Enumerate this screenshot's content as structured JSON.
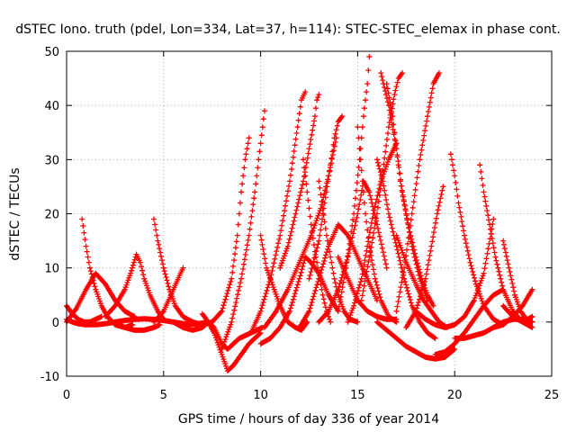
{
  "chart_data": {
    "type": "scatter",
    "title": "dSTEC Iono. truth (pdel, Lon=334, Lat=37, h=114): STEC-STEC_elemax in phase cont.",
    "xlabel": "GPS time / hours of day 336 of year 2014",
    "ylabel": "dSTEC  / TECUs",
    "xlim": [
      0,
      25
    ],
    "ylim": [
      -10,
      50
    ],
    "xticks": [
      0,
      5,
      10,
      15,
      20,
      25
    ],
    "yticks": [
      -10,
      0,
      10,
      20,
      30,
      40,
      50
    ],
    "grid": true,
    "marker": "plus",
    "color": "#ff0000",
    "series": [
      {
        "x": [
          0.0,
          0.3,
          0.6,
          1.0,
          1.5,
          2.0,
          2.5,
          3.0,
          3.5,
          4.0,
          4.5,
          5.0,
          5.5,
          6.0,
          6.5,
          7.0,
          7.3
        ],
        "y": [
          0.5,
          0.0,
          -0.3,
          -0.5,
          -0.5,
          -0.3,
          0.0,
          0.3,
          0.5,
          0.6,
          0.5,
          0.3,
          0.0,
          -0.3,
          -0.4,
          -0.2,
          0.0
        ]
      },
      {
        "x": [
          0.8,
          1.0,
          1.2,
          1.5,
          1.8,
          2.1,
          2.5,
          3.0,
          3.4
        ],
        "y": [
          19.0,
          14.0,
          10.0,
          6.0,
          3.0,
          1.0,
          -0.5,
          -1.0,
          -0.5
        ]
      },
      {
        "x": [
          0.0,
          0.3,
          0.6,
          0.9,
          1.2,
          1.5,
          1.8
        ],
        "y": [
          3.0,
          1.5,
          0.5,
          0.0,
          0.0,
          0.5,
          1.0
        ]
      },
      {
        "x": [
          0.0,
          0.5,
          1.0,
          1.5,
          2.0,
          2.5,
          3.0,
          3.5
        ],
        "y": [
          0.0,
          2.5,
          6.0,
          9.0,
          7.0,
          4.0,
          2.0,
          1.0
        ]
      },
      {
        "x": [
          2.0,
          2.5,
          3.0,
          3.3,
          3.6,
          3.8,
          4.0,
          4.3,
          4.7,
          5.0
        ],
        "y": [
          1.0,
          3.0,
          6.0,
          9.0,
          12.5,
          11.0,
          8.0,
          5.0,
          2.0,
          0.5
        ]
      },
      {
        "x": [
          2.5,
          3.0,
          3.5,
          4.0,
          4.5,
          4.8
        ],
        "y": [
          0.0,
          -1.0,
          -1.5,
          -1.5,
          -1.0,
          -0.5
        ]
      },
      {
        "x": [
          4.5,
          4.7,
          5.0,
          5.3,
          5.6,
          6.0,
          6.5,
          7.0,
          7.5
        ],
        "y": [
          19.0,
          15.0,
          10.0,
          6.0,
          3.0,
          1.0,
          0.0,
          -0.5,
          0.0
        ]
      },
      {
        "x": [
          4.5,
          5.0,
          5.5,
          6.0
        ],
        "y": [
          0.0,
          2.0,
          6.0,
          10.0
        ]
      },
      {
        "x": [
          5.5,
          6.0,
          6.5,
          7.0,
          7.3,
          7.6,
          8.0,
          8.3,
          8.6,
          9.0,
          9.4,
          10.0
        ],
        "y": [
          0.0,
          -1.0,
          -1.5,
          -1.0,
          0.0,
          -2.0,
          -6.0,
          -9.0,
          -8.0,
          -6.0,
          -4.0,
          -2.0
        ]
      },
      {
        "x": [
          7.0,
          7.3,
          7.6,
          8.0,
          8.3,
          8.6,
          8.9,
          9.2,
          9.5,
          9.8,
          10.1
        ],
        "y": [
          1.5,
          0.0,
          -1.0,
          -4.0,
          -5.0,
          -4.0,
          -3.0,
          -2.5,
          -2.0,
          -1.5,
          -1.0
        ]
      },
      {
        "x": [
          7.5,
          8.0,
          8.5,
          8.8,
          9.0,
          9.2,
          9.4
        ],
        "y": [
          0.0,
          2.0,
          8.0,
          16.0,
          24.0,
          30.0,
          34.0
        ]
      },
      {
        "x": [
          8.0,
          8.5,
          9.0,
          9.4,
          9.7,
          9.9,
          10.1,
          10.2
        ],
        "y": [
          -5.0,
          0.0,
          8.0,
          16.0,
          24.0,
          30.0,
          36.0,
          39.0
        ]
      },
      {
        "x": [
          9.5,
          10.0,
          10.5,
          11.0,
          11.5,
          11.9,
          12.1,
          12.3
        ],
        "y": [
          -2.0,
          2.0,
          8.0,
          16.0,
          26.0,
          36.0,
          41.0,
          42.5
        ]
      },
      {
        "x": [
          10.0,
          10.3,
          10.7,
          11.0,
          11.4,
          11.8,
          12.1,
          12.4
        ],
        "y": [
          16.0,
          10.0,
          6.0,
          3.0,
          0.0,
          -1.0,
          -1.5,
          0.0
        ]
      },
      {
        "x": [
          10.0,
          10.5,
          11.0,
          11.5,
          12.0,
          12.3,
          12.6,
          13.0,
          13.5,
          14.0
        ],
        "y": [
          -4.0,
          -3.0,
          -1.0,
          2.0,
          8.0,
          12.0,
          11.0,
          9.0,
          5.0,
          2.0
        ]
      },
      {
        "x": [
          10.2,
          10.8,
          11.4,
          12.0,
          12.6,
          13.1,
          13.5,
          13.9
        ],
        "y": [
          -1.0,
          2.0,
          6.0,
          11.0,
          16.0,
          21.0,
          27.0,
          34.0
        ]
      },
      {
        "x": [
          11.0,
          11.4,
          11.8,
          12.2,
          12.5,
          12.8,
          12.9,
          13.0
        ],
        "y": [
          10.0,
          14.0,
          20.0,
          26.0,
          32.0,
          38.0,
          41.0,
          42.0
        ]
      },
      {
        "x": [
          12.0,
          12.5,
          13.0,
          13.5,
          14.0,
          14.5,
          15.0,
          15.5,
          16.0
        ],
        "y": [
          -1.0,
          2.0,
          8.0,
          14.0,
          18.0,
          16.0,
          12.0,
          8.0,
          4.0
        ]
      },
      {
        "x": [
          12.2,
          12.4,
          12.6,
          12.8,
          13.0,
          13.2,
          13.4,
          13.6
        ],
        "y": [
          30.0,
          24.0,
          18.0,
          13.0,
          9.0,
          5.0,
          2.0,
          0.0
        ]
      },
      {
        "x": [
          12.5,
          13.0,
          13.3,
          13.6,
          13.8,
          14.0,
          14.2
        ],
        "y": [
          8.0,
          15.0,
          22.0,
          29.0,
          34.0,
          37.0,
          38.0
        ]
      },
      {
        "x": [
          13.0,
          13.2,
          13.4,
          13.6,
          13.8,
          14.0,
          14.3,
          14.6,
          15.0
        ],
        "y": [
          26.0,
          21.0,
          16.0,
          12.0,
          8.0,
          5.0,
          2.0,
          0.5,
          0.0
        ]
      },
      {
        "x": [
          13.0,
          13.5,
          14.0,
          14.5,
          15.0,
          15.3,
          15.6,
          16.0,
          16.5
        ],
        "y": [
          0.0,
          2.0,
          6.0,
          12.0,
          20.0,
          26.0,
          24.0,
          18.0,
          10.0
        ]
      },
      {
        "x": [
          14.0,
          14.4,
          14.8,
          15.1,
          15.3,
          15.5,
          15.6
        ],
        "y": [
          2.0,
          10.0,
          20.0,
          30.0,
          38.0,
          44.0,
          49.0
        ]
      },
      {
        "x": [
          14.0,
          14.5,
          15.0,
          15.5,
          16.0,
          16.5,
          17.0
        ],
        "y": [
          12.0,
          8.0,
          4.0,
          2.0,
          1.0,
          0.5,
          0.5
        ]
      },
      {
        "x": [
          14.5,
          14.8,
          15.2,
          15.5,
          15.8,
          16.2,
          16.6,
          17.0
        ],
        "y": [
          0.0,
          3.0,
          8.0,
          14.0,
          20.0,
          26.0,
          30.0,
          33.0
        ]
      },
      {
        "x": [
          15.0,
          15.2,
          15.4,
          15.6,
          15.9,
          16.2,
          16.6,
          17.0
        ],
        "y": [
          36.0,
          28.0,
          20.0,
          14.0,
          8.0,
          4.0,
          1.0,
          0.0
        ]
      },
      {
        "x": [
          15.2,
          15.6,
          16.0,
          16.3,
          16.6,
          16.9,
          17.1,
          17.3
        ],
        "y": [
          4.0,
          12.0,
          20.0,
          28.0,
          36.0,
          42.0,
          45.0,
          46.0
        ]
      },
      {
        "x": [
          16.0,
          16.3,
          16.6,
          17.0,
          17.4,
          17.8,
          18.2,
          18.6,
          19.0
        ],
        "y": [
          30.0,
          26.0,
          20.0,
          14.0,
          8.0,
          3.0,
          0.0,
          -2.0,
          -3.0
        ]
      },
      {
        "x": [
          16.2,
          16.6,
          17.0,
          17.3,
          17.6,
          18.0,
          18.3,
          18.6,
          18.9
        ],
        "y": [
          46.0,
          40.0,
          32.0,
          24.0,
          18.0,
          12.0,
          8.0,
          5.0,
          3.0
        ]
      },
      {
        "x": [
          16.5,
          16.8,
          17.0,
          17.2,
          17.5,
          17.8,
          18.2,
          18.6
        ],
        "y": [
          44.0,
          38.0,
          32.0,
          26.0,
          20.0,
          14.0,
          8.0,
          4.0
        ]
      },
      {
        "x": [
          17.0,
          17.4,
          17.8,
          18.2,
          18.6,
          18.9,
          19.2
        ],
        "y": [
          2.0,
          10.0,
          20.0,
          30.0,
          38.0,
          44.0,
          46.0
        ]
      },
      {
        "x": [
          16.0,
          16.5,
          17.0,
          17.5,
          18.0,
          18.5,
          19.0,
          19.5,
          20.0
        ],
        "y": [
          0.0,
          -1.5,
          -3.0,
          -4.5,
          -5.5,
          -6.5,
          -6.8,
          -6.5,
          -5.0
        ]
      },
      {
        "x": [
          17.5,
          18.0,
          18.5,
          18.8,
          19.1,
          19.4
        ],
        "y": [
          -1.0,
          2.0,
          8.0,
          14.0,
          20.0,
          25.0
        ]
      },
      {
        "x": [
          17.0,
          17.5,
          18.0,
          18.4,
          18.8,
          19.2,
          19.6
        ],
        "y": [
          16.0,
          11.0,
          7.0,
          4.0,
          2.0,
          0.0,
          -1.0
        ]
      },
      {
        "x": [
          18.0,
          18.5,
          19.0,
          19.5,
          20.0,
          20.5,
          21.0,
          21.5,
          22.0
        ],
        "y": [
          2.0,
          0.5,
          -0.5,
          -1.0,
          -0.5,
          1.0,
          4.0,
          9.0,
          19.0
        ]
      },
      {
        "x": [
          19.8,
          20.0,
          20.2,
          20.5,
          20.8,
          21.1,
          21.5,
          22.0,
          22.5
        ],
        "y": [
          31.0,
          27.0,
          22.0,
          16.0,
          11.0,
          7.0,
          3.0,
          0.5,
          -0.5
        ]
      },
      {
        "x": [
          19.0,
          19.5,
          20.0,
          20.5,
          21.0,
          21.5,
          22.0,
          22.5
        ],
        "y": [
          -6.0,
          -5.5,
          -4.0,
          -2.0,
          0.5,
          3.0,
          5.0,
          6.0
        ]
      },
      {
        "x": [
          20.0,
          20.5,
          21.0,
          21.5,
          22.0,
          22.5,
          23.0,
          23.5,
          24.0
        ],
        "y": [
          -3.0,
          -3.0,
          -2.5,
          -2.0,
          -1.0,
          0.0,
          0.5,
          0.5,
          0.0
        ]
      },
      {
        "x": [
          21.3,
          21.5,
          21.8,
          22.1,
          22.5,
          23.0,
          23.5,
          24.0
        ],
        "y": [
          29.0,
          24.0,
          18.0,
          12.0,
          6.0,
          2.0,
          0.0,
          -1.0
        ]
      },
      {
        "x": [
          22.5,
          22.8,
          23.1,
          23.4,
          23.7,
          24.0
        ],
        "y": [
          15.0,
          10.0,
          5.0,
          2.0,
          0.5,
          0.0
        ]
      },
      {
        "x": [
          22.0,
          22.5,
          23.0,
          23.5,
          24.0
        ],
        "y": [
          -1.0,
          -0.5,
          1.0,
          3.0,
          6.0
        ]
      },
      {
        "x": [
          22.5,
          23.0,
          23.5,
          24.0
        ],
        "y": [
          3.0,
          1.0,
          0.0,
          1.0
        ]
      }
    ]
  }
}
